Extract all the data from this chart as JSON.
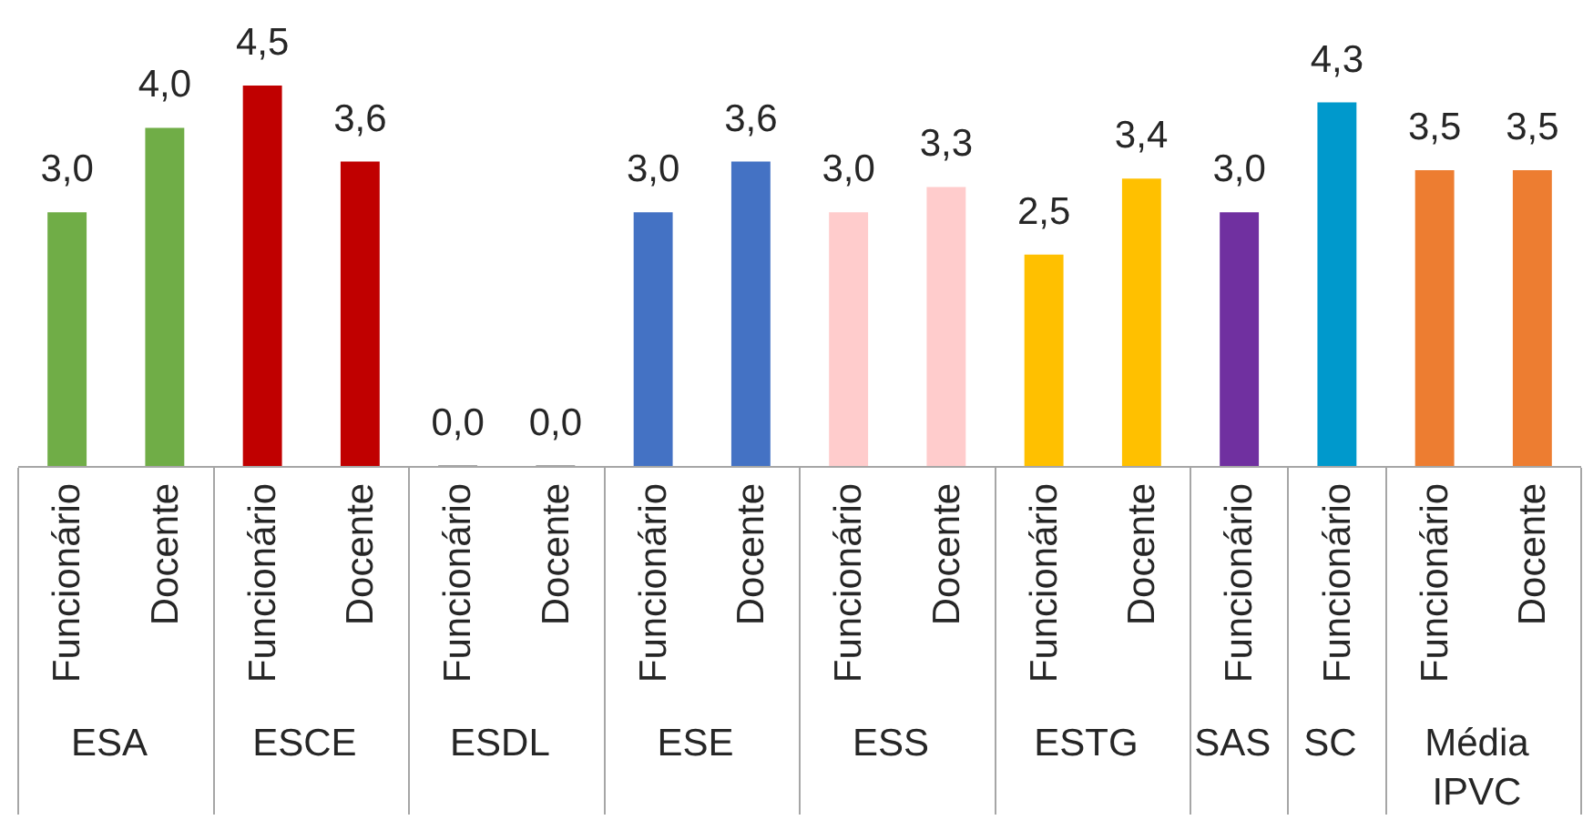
{
  "chart_data": {
    "type": "bar",
    "categories": [
      "ESA",
      "ESCE",
      "ESDL",
      "ESE",
      "ESS",
      "ESTG",
      "SAS",
      "SC",
      "Média IPVC"
    ],
    "series": [
      {
        "name": "Funcionário",
        "colors": [
          "#70ad47",
          "#c00000",
          "#a6a6a6",
          "#4472c4",
          "#ffcccc",
          "#ffc000",
          "#7030a0",
          "#0099cc",
          "#ed7d31"
        ],
        "values": [
          3.0,
          4.5,
          0.0,
          3.0,
          3.0,
          2.5,
          3.0,
          4.3,
          3.5
        ],
        "value_labels": [
          "3,0",
          "4,5",
          "0,0",
          "3,0",
          "3,0",
          "2,5",
          "3,0",
          "4,3",
          "3,5"
        ]
      },
      {
        "name": "Docente",
        "colors": [
          "#70ad47",
          "#c00000",
          "#a6a6a6",
          "#4472c4",
          "#ffcccc",
          "#ffc000",
          null,
          null,
          "#ed7d31"
        ],
        "values": [
          4.0,
          3.6,
          0.0,
          3.6,
          3.3,
          3.4,
          null,
          null,
          3.5
        ],
        "value_labels": [
          "4,0",
          "3,6",
          "0,0",
          "3,6",
          "3,3",
          "3,4",
          null,
          null,
          "3,5"
        ]
      }
    ],
    "tick_labels": "x"
  }
}
